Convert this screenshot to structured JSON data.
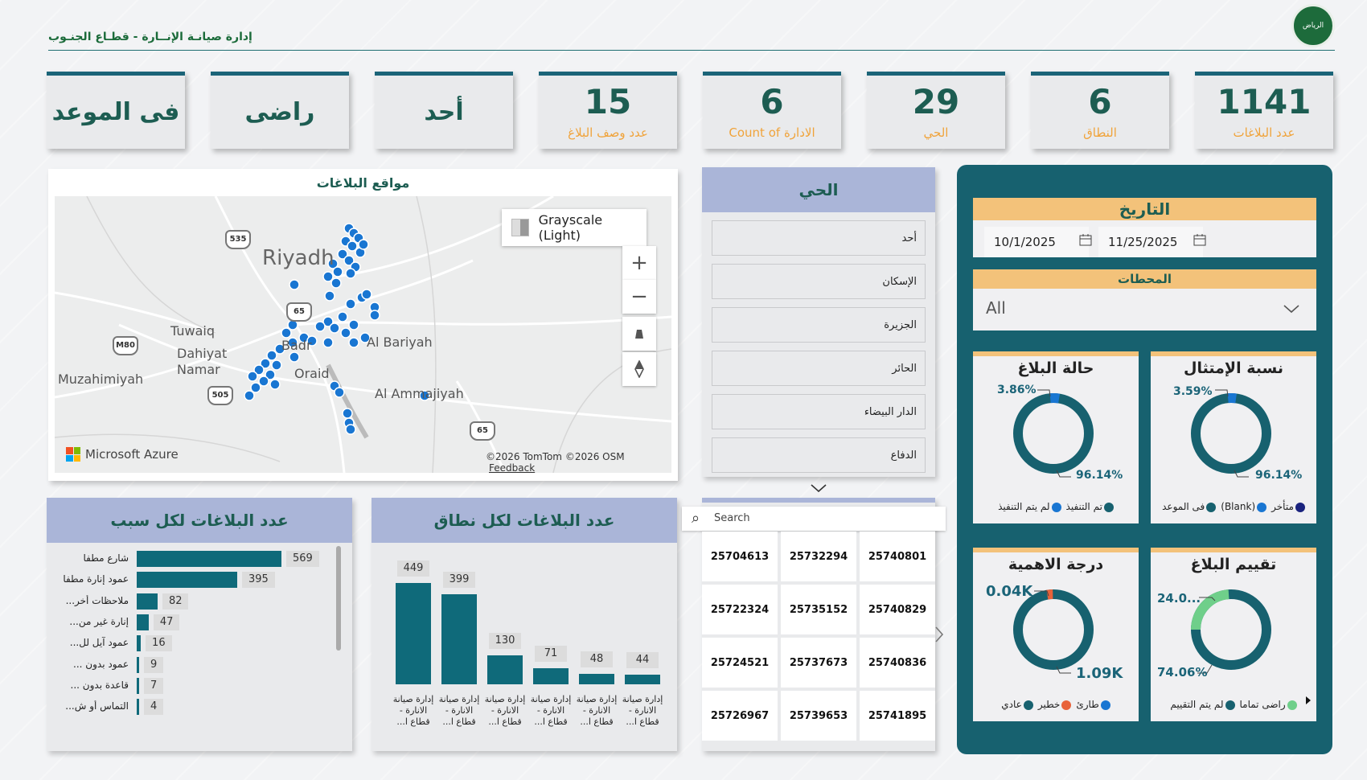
{
  "header": {
    "title": "إدارة صيانـة الإنــارة - قطـاع الجنـوب",
    "logo_text": "الرياض"
  },
  "kpis": [
    {
      "value": "1141",
      "label": "عدد البلاغات"
    },
    {
      "value": "6",
      "label": "النطاق"
    },
    {
      "value": "29",
      "label": "الحي"
    },
    {
      "value": "6",
      "label": "Count of الادارة"
    },
    {
      "value": "15",
      "label": "عدد وصف البلاغ"
    },
    {
      "text": "أحد"
    },
    {
      "text": "راضى"
    },
    {
      "text": "فى الموعد"
    }
  ],
  "map": {
    "title": "مواقع البلاغات",
    "style_button": "Grayscale (Light)",
    "labels": {
      "riyadh": "Riyadh",
      "tuwaiq": "Tuwaiq",
      "dahiyat": "Dahiyat",
      "namar": "Namar",
      "muzahimiyah": "Muzahimiyah",
      "badr": "Badr",
      "oraid": "Oraid",
      "al_bariyah": "Al Bariyah",
      "al_ammajiyah": "Al Ammajiyah"
    },
    "shields": {
      "r535": "535",
      "r65": "65",
      "m80": "M80",
      "r505": "505",
      "r65b": "65"
    },
    "brand": "Microsoft Azure",
    "attribution": "©2026 TomTom  ©2026 OSM",
    "feedback": "Feedback",
    "zoom_in": "+",
    "zoom_out": "−"
  },
  "hay_slicer": {
    "title": "الحي",
    "items": [
      "أحد",
      "الإسكان",
      "الجزيرة",
      "الحائر",
      "الدار البيضاء",
      "الدفاع"
    ]
  },
  "filters": {
    "date_title": "التاريخ",
    "date_from": "10/1/2025",
    "date_to": "11/25/2025",
    "stations_title": "المحطات",
    "stations_value": "All"
  },
  "donuts": {
    "status": {
      "title": "حالة البلاغ",
      "small_pct": "3.86%",
      "large_pct": "96.14%",
      "legend": [
        "تم التنفيذ",
        "لم يتم التنفيذ"
      ]
    },
    "compliance": {
      "title": "نسبة الإمتثال",
      "small_pct": "3.59%",
      "large_pct": "96.14%",
      "legend": [
        "فى الموعد",
        "(Blank)",
        "متأخر"
      ]
    },
    "priority": {
      "title": "درجة الاهمية",
      "small_val": "0.04K",
      "large_val": "1.09K",
      "legend": [
        "عادي",
        "خطير",
        "طارئ"
      ]
    },
    "rating": {
      "title": "تقييم البلاغ",
      "small_val": "24.0...",
      "large_pct": "74.06%",
      "legend": [
        "لم يتم التقييم",
        "راضى تماما"
      ]
    }
  },
  "colors": {
    "teal": "#17616f",
    "blue": "#1976d2",
    "navy": "#1a237e",
    "orange": "#e8623a",
    "green": "#6fcf8a",
    "accent": "#f3c27a"
  },
  "cause_chart": {
    "title": "عدد البلاغات لكل سبب",
    "labels": [
      "شارع مطفا",
      "عمود إنارة مطفا",
      "ملاحظات أخر...",
      "إنارة غير من...",
      "عمود آيل لل...",
      "عمود بدون ...",
      "قاعدة بدون ...",
      "التماس أو ش..."
    ],
    "value_labels": [
      "569",
      "395",
      "82",
      "47",
      "16",
      "9",
      "7",
      "4"
    ]
  },
  "chart_data": {
    "type": "bar",
    "title": "عدد البلاغات لكل نطاق",
    "categories": [
      "إدارة صيانة الانارة - قطاع ا...",
      "إدارة صيانة الانارة - قطاع ا...",
      "إدارة صيانة الانارة - قطاع ا...",
      "إدارة صيانة الانارة - قطاع ا...",
      "إدارة صيانة الانارة - قطاع ا...",
      "إدارة صيانة الانارة - قطاع ا..."
    ],
    "values": [
      449,
      399,
      130,
      71,
      48,
      44
    ],
    "value_labels": [
      "449",
      "399",
      "130",
      "71",
      "48",
      "44"
    ]
  },
  "cause_values": [
    569,
    395,
    82,
    47,
    16,
    9,
    7,
    4
  ],
  "ids_table": {
    "search_placeholder": "Search",
    "rows": [
      [
        "25704613",
        "25732294",
        "25740801"
      ],
      [
        "25722324",
        "25735152",
        "25740829"
      ],
      [
        "25724521",
        "25737673",
        "25740836"
      ],
      [
        "25726967",
        "25739653",
        "25741895"
      ]
    ]
  }
}
